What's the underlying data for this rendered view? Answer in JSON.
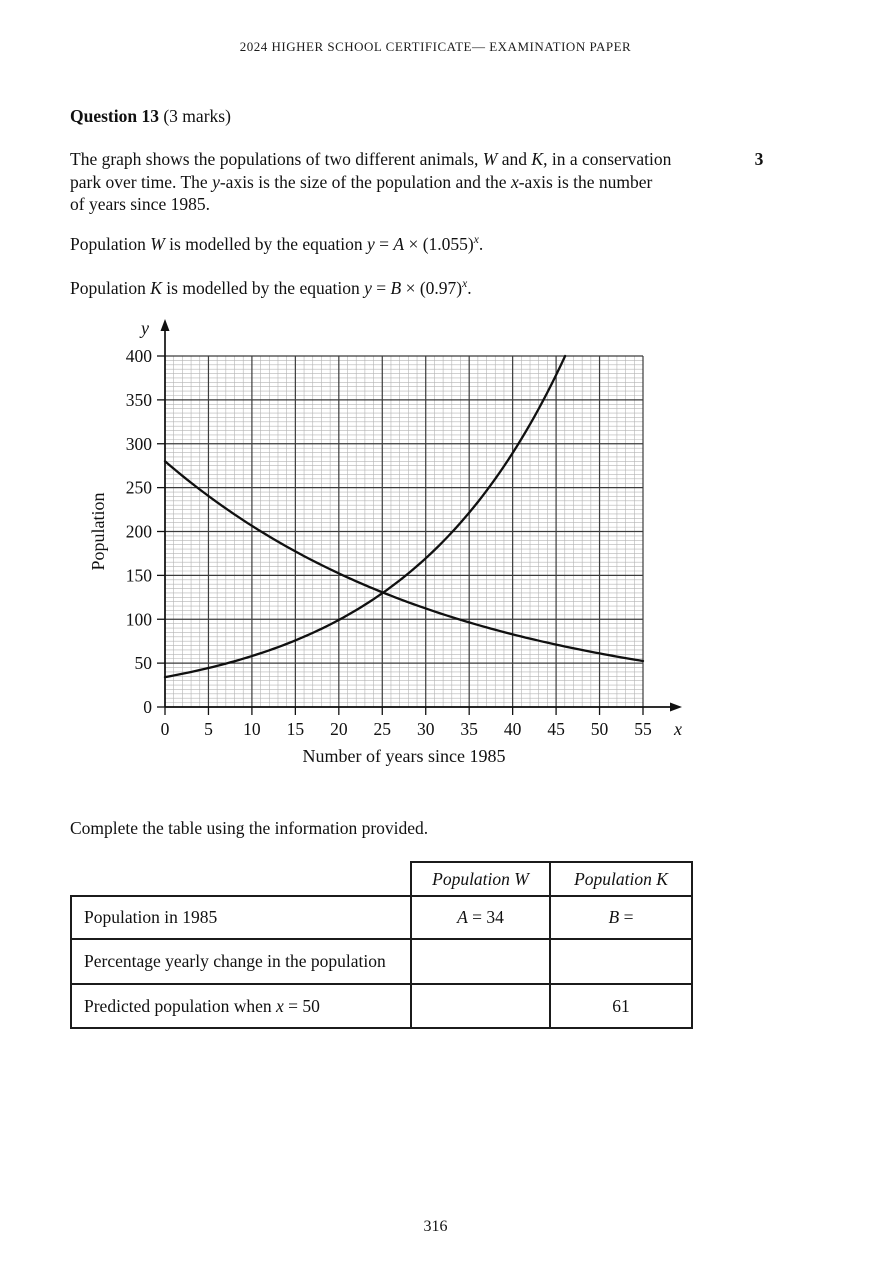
{
  "header": {
    "title": "2024 HIGHER SCHOOL CERTIFICATE— EXAMINATION PAPER"
  },
  "question": {
    "title_bold": "Question 13",
    "title_suffix": " (3 marks)",
    "marks": "3",
    "intro_segments": [
      {
        "t": "The graph shows the populations of two different animals, "
      },
      {
        "t": "W",
        "i": true
      },
      {
        "t": " and "
      },
      {
        "t": "K",
        "i": true
      },
      {
        "t": ", in a conservation",
        "br": true
      },
      {
        "t": "park over time. The "
      },
      {
        "t": "y",
        "i": true
      },
      {
        "t": "-axis is the size of the population and the "
      },
      {
        "t": "x",
        "i": true
      },
      {
        "t": "-axis is the number",
        "br": true
      },
      {
        "t": "of years since 1985."
      }
    ],
    "equation_w_segments": [
      {
        "t": "Population "
      },
      {
        "t": "W",
        "i": true
      },
      {
        "t": " is modelled by the equation  "
      },
      {
        "t": "y",
        "i": true
      },
      {
        "t": " = "
      },
      {
        "t": "A",
        "i": true
      },
      {
        "t": " × (1.055)"
      },
      {
        "t": "x",
        "i": true,
        "sup": true
      },
      {
        "t": "."
      }
    ],
    "equation_k_segments": [
      {
        "t": "Population "
      },
      {
        "t": "K",
        "i": true
      },
      {
        "t": " is modelled by the equation  "
      },
      {
        "t": "y",
        "i": true
      },
      {
        "t": " = "
      },
      {
        "t": "B",
        "i": true
      },
      {
        "t": " × (0.97)"
      },
      {
        "t": "x",
        "i": true,
        "sup": true
      },
      {
        "t": "."
      }
    ]
  },
  "chart_data": {
    "type": "line",
    "title": "",
    "xlabel": "Number of years since 1985",
    "ylabel": "Population",
    "x_axis_letter": "x",
    "y_axis_letter": "y",
    "xlim": [
      0,
      55
    ],
    "ylim": [
      0,
      400
    ],
    "x_ticks": [
      0,
      5,
      10,
      15,
      20,
      25,
      30,
      35,
      40,
      45,
      50,
      55
    ],
    "y_ticks": [
      0,
      50,
      100,
      150,
      200,
      250,
      300,
      350,
      400
    ],
    "x_minor_step": 1,
    "y_minor_step": 5,
    "grid": "minor and major gridlines on",
    "legend": "none",
    "colors": {
      "curve": "#101010",
      "major_grid": "#3c3c3c",
      "minor_grid": "#b4b4b4"
    },
    "series": [
      {
        "name": "Population W",
        "model": "exponential growth, y = 34 × (1.055)^x, clipped at y = 400 (exits top near x = 46)",
        "y0": 34,
        "base": 1.055,
        "points": [
          [
            0,
            34
          ],
          [
            5,
            44.4
          ],
          [
            10,
            58.1
          ],
          [
            15,
            75.9
          ],
          [
            20,
            99.2
          ],
          [
            25,
            129.6
          ],
          [
            30,
            169.5
          ],
          [
            35,
            221.4
          ],
          [
            40,
            289.4
          ],
          [
            45,
            378.3
          ],
          [
            46,
            399.1
          ]
        ]
      },
      {
        "name": "Population K",
        "model": "exponential decay, y = 280 × (0.97)^x",
        "y0": 280,
        "base": 0.97,
        "points": [
          [
            0,
            280
          ],
          [
            5,
            240.4
          ],
          [
            10,
            206.5
          ],
          [
            15,
            177.3
          ],
          [
            20,
            152.3
          ],
          [
            25,
            130.8
          ],
          [
            30,
            112.3
          ],
          [
            35,
            96.4
          ],
          [
            40,
            82.8
          ],
          [
            45,
            71.1
          ],
          [
            50,
            61.1
          ],
          [
            55,
            52.4
          ]
        ]
      }
    ],
    "annotations": "curves intersect near (25, 131)"
  },
  "table": {
    "caption": "Complete the table using the information provided.",
    "header_w_segments": [
      {
        "t": "Population W",
        "i": true
      }
    ],
    "header_k_segments": [
      {
        "t": "Population K",
        "i": true
      }
    ],
    "rows": [
      {
        "label_segments": [
          {
            "t": "Population in 1985"
          }
        ],
        "w_segments": [
          {
            "t": "A",
            "i": true
          },
          {
            "t": " = 34"
          }
        ],
        "k_segments": [
          {
            "t": "B",
            "i": true
          },
          {
            "t": " ="
          }
        ]
      },
      {
        "label_segments": [
          {
            "t": "Percentage yearly change in the population"
          }
        ],
        "w_segments": [],
        "k_segments": []
      },
      {
        "label_segments": [
          {
            "t": "Predicted population when "
          },
          {
            "t": "x",
            "i": true
          },
          {
            "t": " = 50"
          }
        ],
        "w_segments": [],
        "k_segments": [
          {
            "t": "61"
          }
        ]
      }
    ]
  },
  "footer": {
    "page_number": "316"
  }
}
